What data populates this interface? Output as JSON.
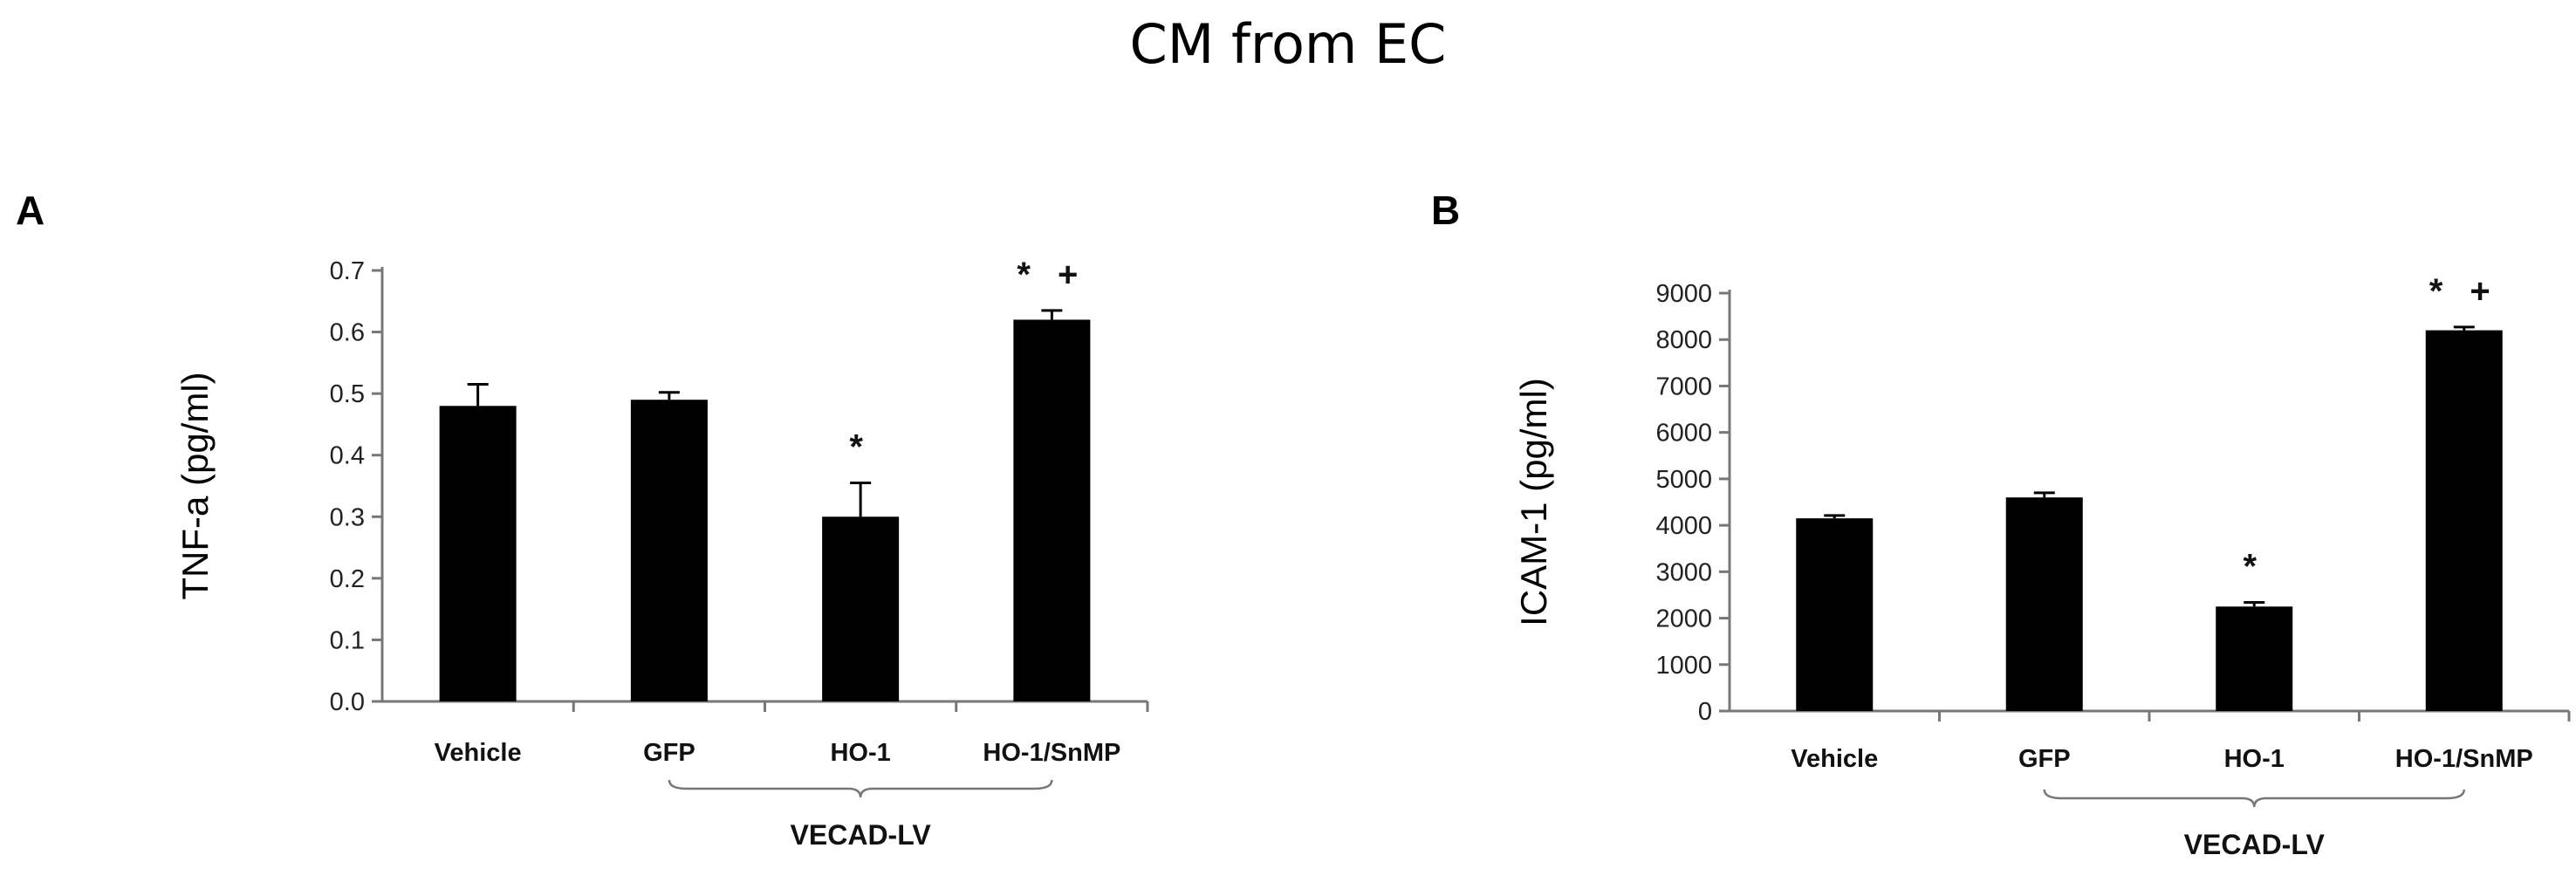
{
  "figure": {
    "title": "CM from EC"
  },
  "chart_data": [
    {
      "type": "bar",
      "panel_label": "A",
      "categories": [
        "Vehicle",
        "GFP",
        "HO-1",
        "HO-1/SnMP"
      ],
      "values": [
        0.48,
        0.49,
        0.3,
        0.62
      ],
      "errors": [
        0.035,
        0.012,
        0.055,
        0.015
      ],
      "annotations": [
        "",
        "",
        "*",
        "* +"
      ],
      "ylabel": "TNF-a (pg/ml)",
      "ylim": [
        0,
        0.7
      ],
      "yticks": [
        "0.0",
        "0.1",
        "0.2",
        "0.3",
        "0.4",
        "0.5",
        "0.6",
        "0.7"
      ],
      "group_label": "VECAD-LV",
      "bar_color": "#000000"
    },
    {
      "type": "bar",
      "panel_label": "B",
      "categories": [
        "Vehicle",
        "GFP",
        "HO-1",
        "HO-1/SnMP"
      ],
      "values": [
        4150,
        4600,
        2250,
        8200
      ],
      "errors": [
        60,
        100,
        90,
        70
      ],
      "annotations": [
        "",
        "",
        "*",
        "* +"
      ],
      "ylabel": "ICAM-1 (pg/ml)",
      "ylim": [
        0,
        9000
      ],
      "yticks": [
        "0",
        "1000",
        "2000",
        "3000",
        "4000",
        "5000",
        "6000",
        "7000",
        "8000",
        "9000"
      ],
      "group_label": "VECAD-LV",
      "bar_color": "#000000"
    }
  ]
}
